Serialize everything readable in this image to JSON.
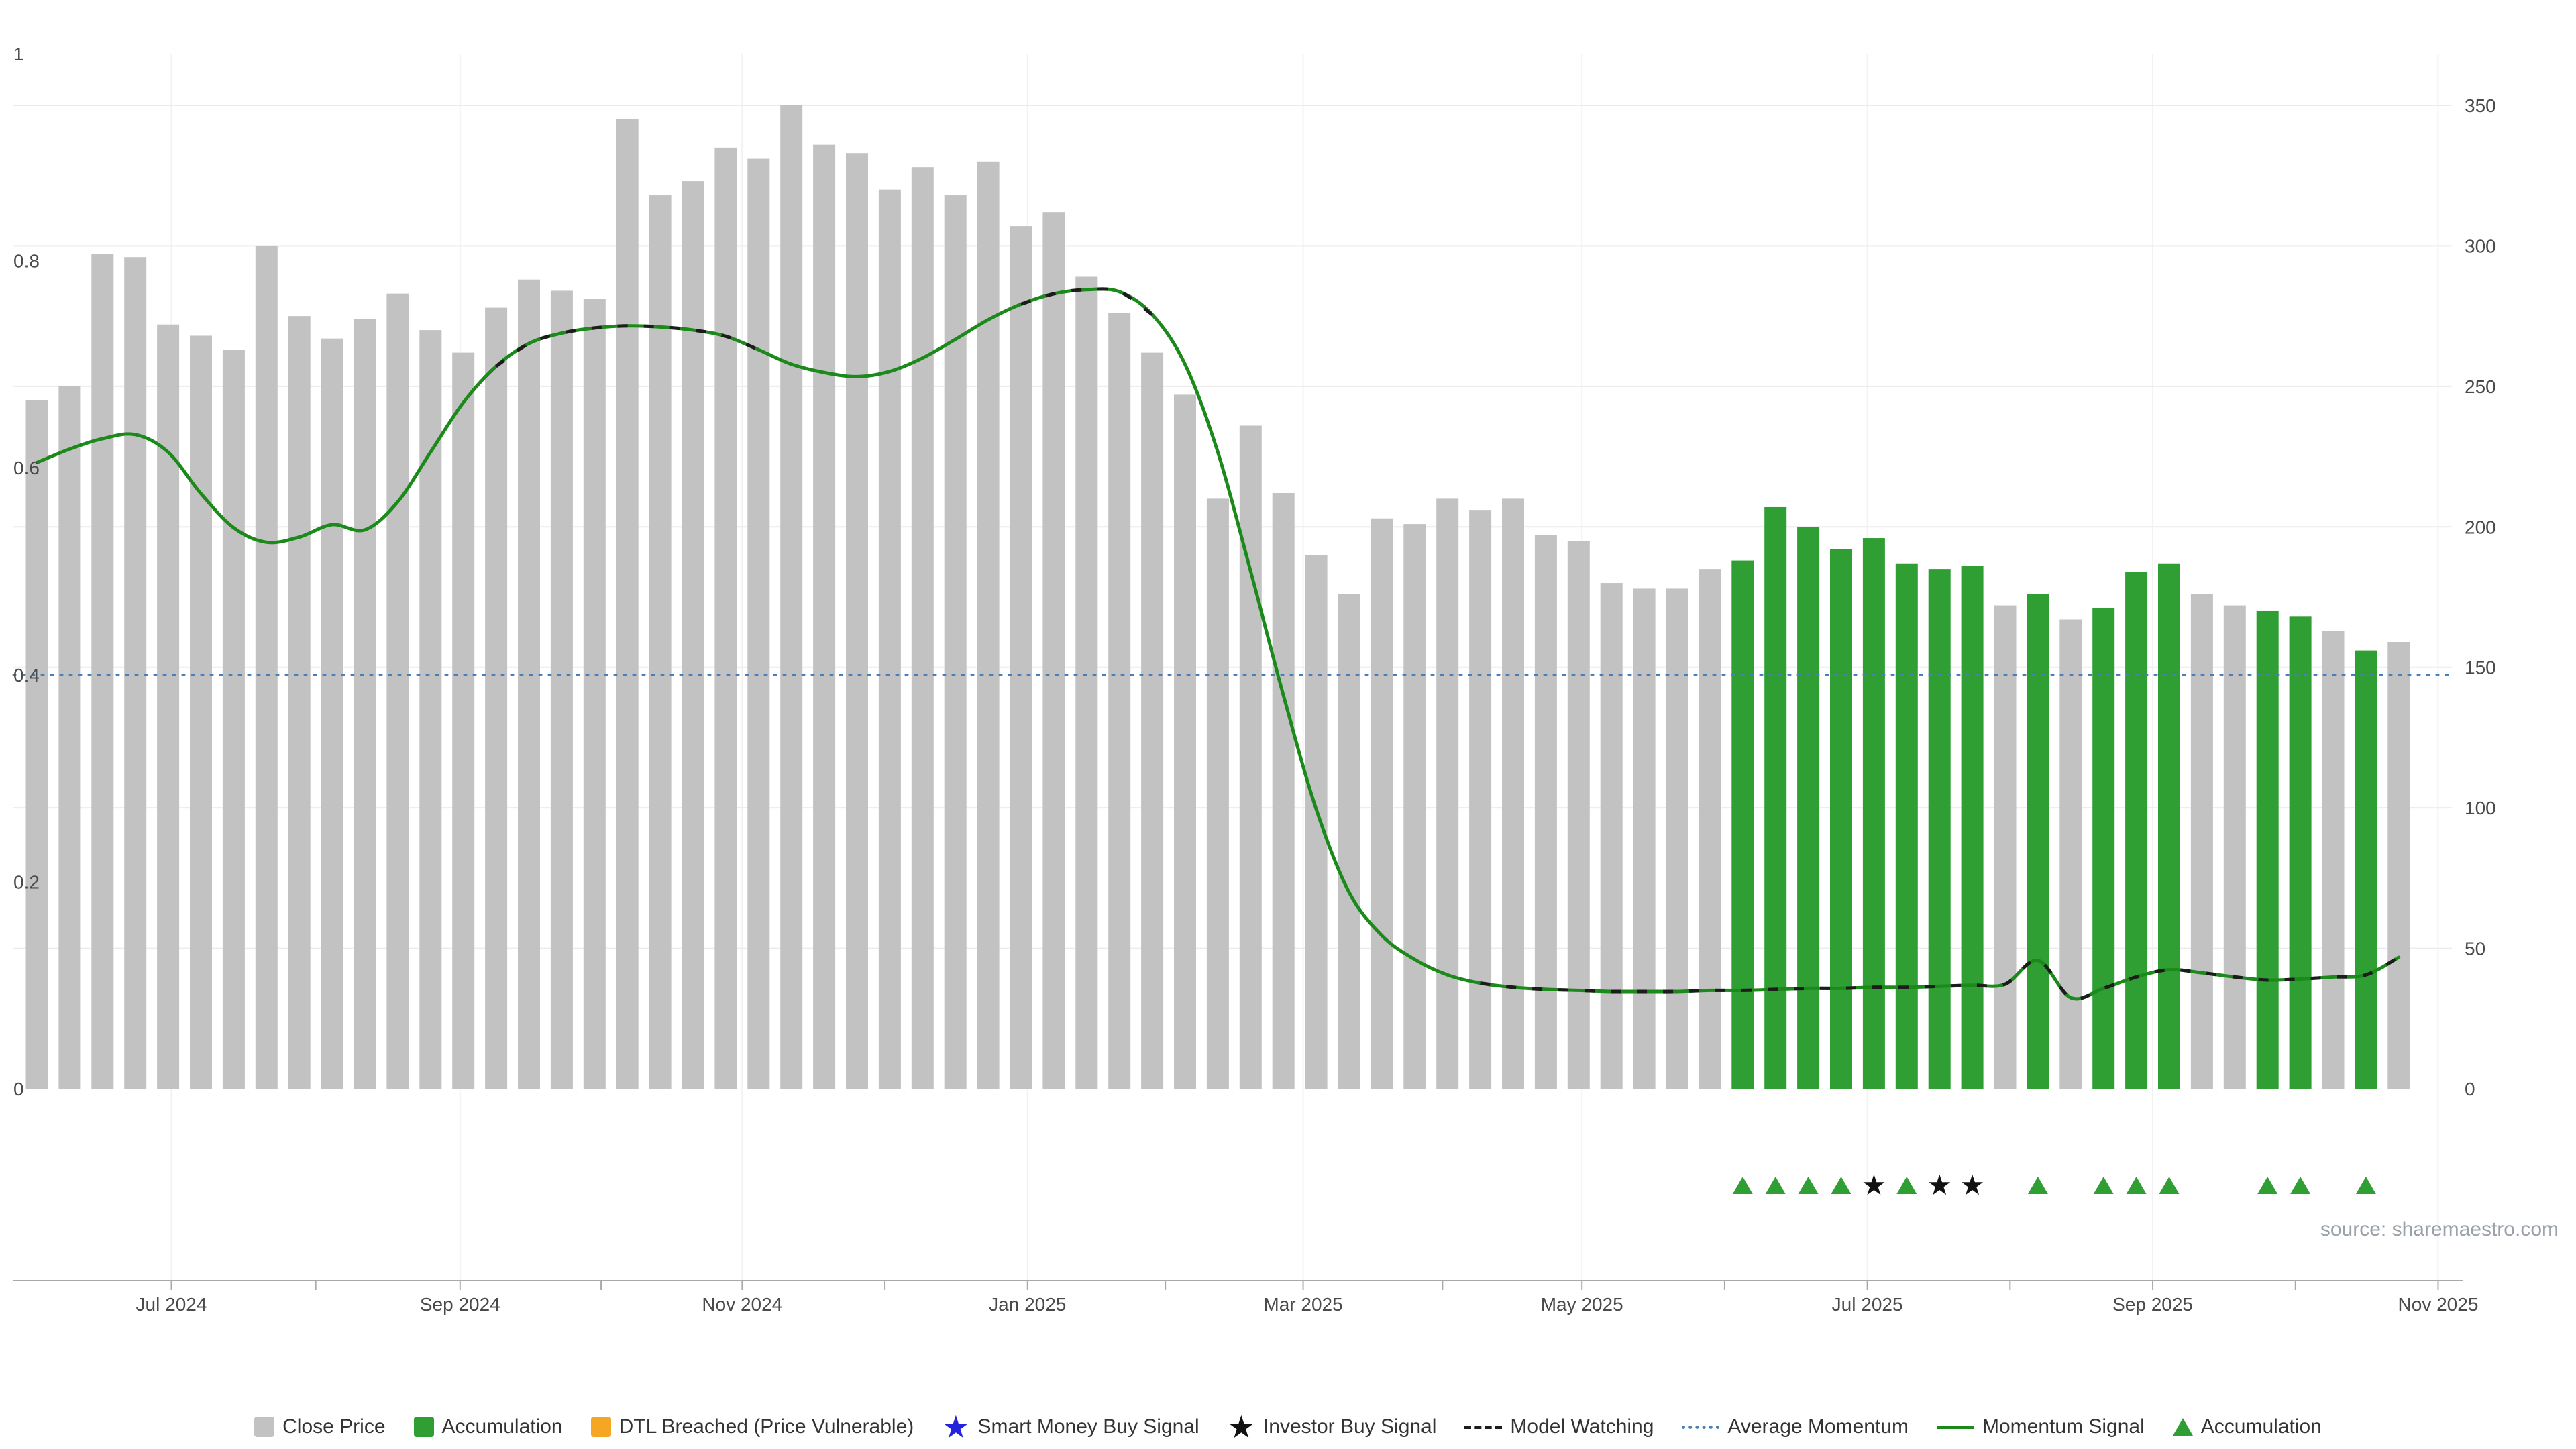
{
  "chart_data": {
    "type": "bar",
    "title": "",
    "source_text": "source: sharemaestro.com",
    "x_unit": "week",
    "x_axis": {
      "ticks": [
        {
          "label": "Jul 2024",
          "week": 5.1
        },
        {
          "label": "Sep 2024",
          "week": 13.9
        },
        {
          "label": "Nov 2024",
          "week": 22.5
        },
        {
          "label": "Jan 2025",
          "week": 31.2
        },
        {
          "label": "Mar 2025",
          "week": 39.6
        },
        {
          "label": "May 2025",
          "week": 48.1
        },
        {
          "label": "Jul 2025",
          "week": 56.8
        },
        {
          "label": "Sep 2025",
          "week": 65.5
        },
        {
          "label": "Nov 2025",
          "week": 74.2
        }
      ]
    },
    "left_axis": {
      "title": "momentum",
      "min": 0,
      "max": 1,
      "ticks": [
        0,
        0.2,
        0.4,
        0.6,
        0.8,
        1
      ]
    },
    "right_axis": {
      "title": "price",
      "min": 0,
      "max": 350,
      "ticks": [
        0,
        50,
        100,
        150,
        200,
        250,
        300,
        350
      ]
    },
    "close_price": {
      "name": "Close Price",
      "values": [
        245,
        250,
        297,
        296,
        272,
        268,
        263,
        300,
        275,
        267,
        274,
        283,
        270,
        262,
        278,
        288,
        284,
        281,
        345,
        318,
        323,
        335,
        331,
        350,
        336,
        333,
        320,
        328,
        318,
        330,
        307,
        312,
        289,
        276,
        262,
        247,
        210,
        236,
        212,
        190,
        176,
        203,
        201,
        210,
        206,
        210,
        197,
        195,
        180,
        178,
        178,
        185,
        188,
        207,
        200,
        192,
        196,
        187,
        185,
        186,
        172,
        176,
        167,
        171,
        184,
        187,
        176,
        172,
        170,
        168,
        163,
        156,
        159
      ]
    },
    "accumulation_weeks": [
      53,
      54,
      55,
      56,
      57,
      58,
      59,
      60,
      62,
      64,
      65,
      66,
      69,
      70,
      72
    ],
    "momentum_signal": {
      "name": "Momentum Signal",
      "values": [
        0.605,
        0.618,
        0.628,
        0.632,
        0.615,
        0.575,
        0.542,
        0.528,
        0.533,
        0.545,
        0.54,
        0.567,
        0.615,
        0.663,
        0.698,
        0.72,
        0.73,
        0.735,
        0.737,
        0.736,
        0.733,
        0.727,
        0.714,
        0.7,
        0.692,
        0.688,
        0.693,
        0.706,
        0.724,
        0.743,
        0.758,
        0.768,
        0.772,
        0.77,
        0.748,
        0.7,
        0.615,
        0.5,
        0.38,
        0.27,
        0.19,
        0.148,
        0.125,
        0.11,
        0.102,
        0.098,
        0.096,
        0.095,
        0.094,
        0.094,
        0.094,
        0.095,
        0.095,
        0.096,
        0.097,
        0.097,
        0.098,
        0.098,
        0.099,
        0.1,
        0.101,
        0.124,
        0.088,
        0.097,
        0.108,
        0.115,
        0.112,
        0.108,
        0.105,
        0.106,
        0.108,
        0.11,
        0.127
      ]
    },
    "average_momentum": {
      "name": "Average Momentum",
      "value": 0.4
    },
    "model_watching_segments": [
      [
        15,
        23
      ],
      [
        31,
        35
      ],
      [
        45,
        73
      ]
    ],
    "markers": {
      "accumulation_triangle_weeks": [
        53,
        54,
        55,
        56,
        58,
        62,
        64,
        65,
        66,
        69,
        70,
        72
      ],
      "investor_buy_star_weeks": [
        57,
        59,
        60
      ]
    },
    "colors": {
      "close_price": "#c2c2c2",
      "accumulation": "#2f9e33",
      "momentum_signal": "#1b8a1b",
      "average_momentum": "#4a7fb5",
      "model_watching": "#1c1c1c",
      "dtl_breached": "#f5a623",
      "smart_money": "#2323dd",
      "investor_buy": "#111111",
      "grid": "#ebebeb",
      "month_grid": "#f2f2f2",
      "axis_line": "#aaaaaa",
      "axis_text": "#4a4a4a"
    }
  },
  "legend": {
    "items": [
      {
        "icon": "square",
        "color": "#c2c2c2",
        "label": "Close Price"
      },
      {
        "icon": "square",
        "color": "#2f9e33",
        "label": "Accumulation"
      },
      {
        "icon": "square",
        "color": "#f5a623",
        "label": "DTL Breached (Price Vulnerable)"
      },
      {
        "icon": "star",
        "color": "#2323dd",
        "label": "Smart Money Buy Signal"
      },
      {
        "icon": "star",
        "color": "#111111",
        "label": "Investor Buy Signal"
      },
      {
        "icon": "dashes",
        "color": "#1c1c1c",
        "label": "Model Watching"
      },
      {
        "icon": "dotted",
        "color": "#4a7fb5",
        "label": "Average Momentum"
      },
      {
        "icon": "line",
        "color": "#1b8a1b",
        "label": "Momentum Signal"
      },
      {
        "icon": "triangle",
        "color": "#2f9e33",
        "label": "Accumulation"
      }
    ]
  }
}
